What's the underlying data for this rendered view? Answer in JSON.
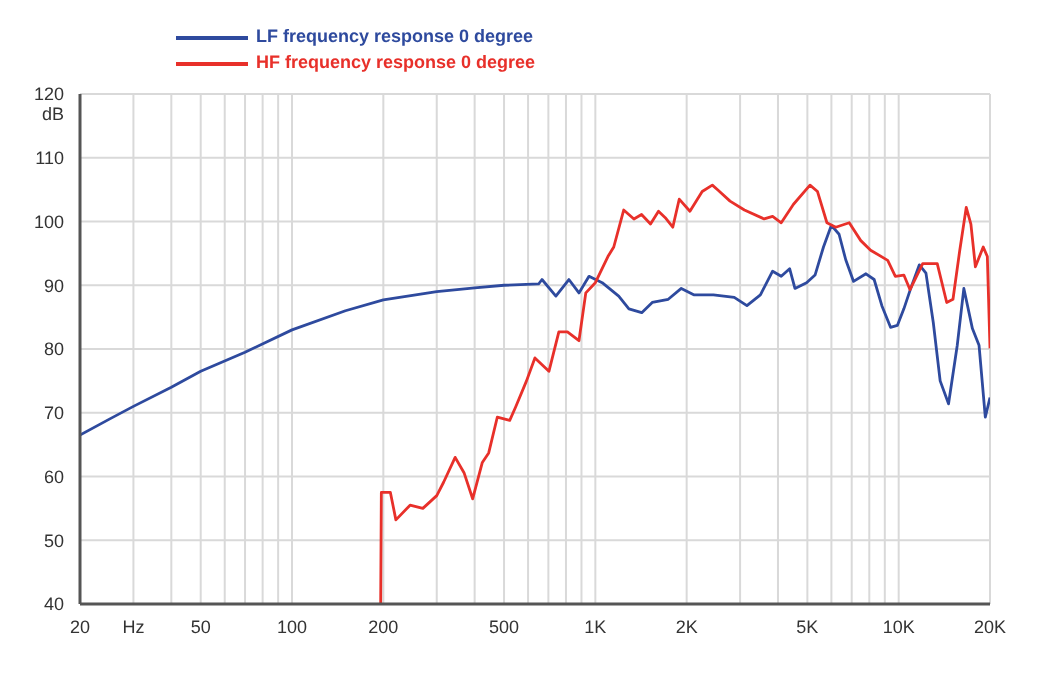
{
  "chart_data": {
    "type": "line",
    "ylabel": "dB",
    "log": "x",
    "grid": true,
    "legend": "top left",
    "marker": "none",
    "line_style": "solid",
    "xlim": [
      20,
      20000
    ],
    "ylim": [
      40,
      120
    ],
    "xticks": [
      20,
      {
        "value": 30,
        "label": "Hz"
      },
      {
        "value": 40,
        "label": null
      },
      50,
      {
        "value": 60,
        "label": null
      },
      {
        "value": 70,
        "label": null
      },
      {
        "value": 80,
        "label": null
      },
      {
        "value": 90,
        "label": null
      },
      100,
      200,
      {
        "value": 300,
        "label": null
      },
      {
        "value": 400,
        "label": null
      },
      500,
      {
        "value": 600,
        "label": null
      },
      {
        "value": 700,
        "label": null
      },
      {
        "value": 800,
        "label": null
      },
      {
        "value": 900,
        "label": null
      },
      {
        "value": 1000,
        "label": "1K"
      },
      {
        "value": 2000,
        "label": "2K"
      },
      {
        "value": 3000,
        "label": null
      },
      {
        "value": 4000,
        "label": null
      },
      {
        "value": 5000,
        "label": "5K"
      },
      {
        "value": 6000,
        "label": null
      },
      {
        "value": 7000,
        "label": null
      },
      {
        "value": 8000,
        "label": null
      },
      {
        "value": 9000,
        "label": null
      },
      {
        "value": 10000,
        "label": "10K"
      },
      {
        "value": 20000,
        "label": "20K"
      }
    ],
    "yticks": [
      40,
      50,
      60,
      70,
      80,
      90,
      100,
      110,
      120
    ],
    "series": [
      {
        "name": "LF frequency response 0 degree",
        "color": "#2e4a9e",
        "x": [
          20,
          25,
          30,
          40,
          50,
          70,
          100,
          150,
          200,
          300,
          400,
          500,
          650,
          667,
          741,
          818,
          883,
          953,
          1053,
          1194,
          1290,
          1422,
          1540,
          1739,
          1920,
          2110,
          2450,
          2870,
          3160,
          3500,
          3840,
          4100,
          4370,
          4550,
          4970,
          5300,
          5650,
          6000,
          6360,
          6690,
          7100,
          7800,
          8300,
          8800,
          9400,
          9900,
          10400,
          10900,
          11700,
          12300,
          13000,
          13700,
          14600,
          15600,
          16400,
          17500,
          18400,
          19300,
          20000
        ],
        "values": [
          66.5,
          69,
          71,
          74,
          76.5,
          79.5,
          83,
          86,
          87.7,
          89,
          89.6,
          90,
          90.2,
          90.9,
          88.3,
          90.9,
          88.8,
          91.4,
          90.4,
          88.3,
          86.3,
          85.7,
          87.3,
          87.8,
          89.5,
          88.5,
          88.5,
          88.1,
          86.8,
          88.5,
          92.2,
          91.4,
          92.6,
          89.5,
          90.4,
          91.6,
          96,
          99.4,
          98,
          94,
          90.6,
          91.8,
          90.9,
          86.8,
          83.4,
          83.7,
          86.3,
          89.2,
          93.2,
          91.9,
          84.2,
          75,
          71.4,
          80.6,
          89.5,
          83.2,
          80.6,
          69.3,
          72.4
        ]
      },
      {
        "name": "HF frequency response 0 degree",
        "color": "#e8302a",
        "x": [
          196,
          197,
          211,
          220,
          245,
          270,
          300,
          316,
          345,
          369,
          394,
          424,
          445,
          475,
          522,
          546,
          593,
          632,
          703,
          758,
          809,
          883,
          930,
          1000,
          1100,
          1150,
          1240,
          1340,
          1420,
          1520,
          1615,
          1700,
          1800,
          1890,
          2050,
          2250,
          2430,
          2540,
          2780,
          3100,
          3600,
          3840,
          4100,
          4500,
          5100,
          5400,
          5800,
          6200,
          6870,
          7500,
          8080,
          9200,
          9750,
          10400,
          10900,
          12000,
          13400,
          14400,
          15100,
          15900,
          16700,
          17300,
          17900,
          19000,
          19600,
          20000
        ],
        "values": [
          40,
          57.5,
          57.5,
          53.2,
          55.5,
          55,
          57,
          59.1,
          63,
          60.6,
          56.5,
          62.2,
          63.7,
          69.3,
          68.8,
          70.9,
          75,
          78.6,
          76.5,
          82.7,
          82.7,
          81.3,
          88.8,
          90.4,
          94.5,
          96,
          101.8,
          100.4,
          101.1,
          99.6,
          101.6,
          100.6,
          99.1,
          103.5,
          101.6,
          104.7,
          105.7,
          104.9,
          103.2,
          101.8,
          100.4,
          100.8,
          99.8,
          102.7,
          105.7,
          104.7,
          99.8,
          99.1,
          99.8,
          97,
          95.5,
          93.9,
          91.4,
          91.6,
          89.3,
          93.4,
          93.4,
          87.3,
          87.8,
          95.5,
          102.2,
          99.6,
          92.9,
          96,
          94.5,
          80.1
        ]
      }
    ]
  }
}
